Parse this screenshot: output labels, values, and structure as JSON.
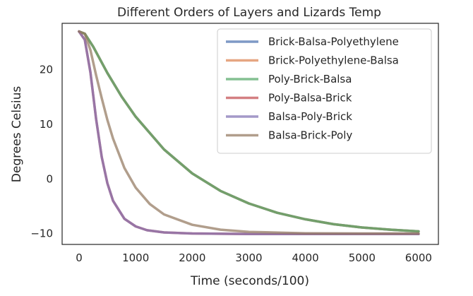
{
  "chart_data": {
    "type": "line",
    "title": "Different Orders of Layers and Lizards Temp",
    "xlabel": "Time (seconds/100)",
    "ylabel": "Degrees Celsius",
    "xlim": [
      -300,
      6350
    ],
    "ylim": [
      -12,
      28.5
    ],
    "xticks": [
      0,
      1000,
      2000,
      3000,
      4000,
      5000,
      6000
    ],
    "yticks": [
      -10,
      0,
      10,
      20
    ],
    "grid": false,
    "legend": "top-right",
    "series": [
      {
        "name": "Brick-Balsa-Polyethylene",
        "color": "#4c72b0",
        "x": [
          0,
          100,
          250,
          500,
          750,
          1000,
          1500,
          2000,
          2500,
          3000,
          3500,
          4000,
          4500,
          5000,
          5500,
          6000
        ],
        "y": [
          27,
          26.6,
          24.2,
          19.4,
          15.1,
          11.4,
          5.4,
          1.0,
          -2.2,
          -4.5,
          -6.2,
          -7.4,
          -8.3,
          -8.9,
          -9.3,
          -9.6
        ]
      },
      {
        "name": "Brick-Polyethylene-Balsa",
        "color": "#dd8452",
        "x": [
          0,
          100,
          250,
          500,
          750,
          1000,
          1500,
          2000,
          2500,
          3000,
          3500,
          4000,
          4500,
          5000,
          5500,
          6000
        ],
        "y": [
          27,
          26.6,
          24.2,
          19.4,
          15.1,
          11.4,
          5.4,
          1.0,
          -2.2,
          -4.5,
          -6.2,
          -7.4,
          -8.3,
          -8.9,
          -9.3,
          -9.6
        ]
      },
      {
        "name": "Poly-Brick-Balsa",
        "color": "#55a868",
        "x": [
          0,
          100,
          250,
          500,
          750,
          1000,
          1500,
          2000,
          2500,
          3000,
          3500,
          4000,
          4500,
          5000,
          5500,
          6000
        ],
        "y": [
          27,
          26.6,
          24.2,
          19.4,
          15.1,
          11.4,
          5.4,
          1.0,
          -2.2,
          -4.5,
          -6.2,
          -7.4,
          -8.3,
          -8.9,
          -9.3,
          -9.6
        ]
      },
      {
        "name": "Poly-Balsa-Brick",
        "color": "#c44e52",
        "x": [
          0,
          100,
          200,
          300,
          400,
          500,
          600,
          800,
          1000,
          1200,
          1500,
          2000,
          3000,
          4000,
          5000,
          6000
        ],
        "y": [
          27,
          25.5,
          19.5,
          11.0,
          4.0,
          -0.8,
          -4.0,
          -7.3,
          -8.7,
          -9.4,
          -9.8,
          -10.0,
          -10.1,
          -10.1,
          -10.1,
          -10.1
        ]
      },
      {
        "name": "Balsa-Poly-Brick",
        "color": "#8172b3",
        "x": [
          0,
          100,
          200,
          300,
          400,
          500,
          600,
          800,
          1000,
          1200,
          1500,
          2000,
          3000,
          4000,
          5000,
          6000
        ],
        "y": [
          27,
          25.5,
          19.5,
          11.0,
          4.0,
          -0.8,
          -4.0,
          -7.3,
          -8.7,
          -9.4,
          -9.8,
          -10.0,
          -10.1,
          -10.1,
          -10.1,
          -10.1
        ]
      },
      {
        "name": "Balsa-Brick-Poly",
        "color": "#937860",
        "x": [
          0,
          100,
          200,
          300,
          400,
          500,
          600,
          800,
          1000,
          1250,
          1500,
          2000,
          2500,
          3000,
          4000,
          5000,
          6000
        ],
        "y": [
          27,
          26.6,
          23.6,
          19.0,
          14.8,
          10.8,
          7.4,
          2.0,
          -1.6,
          -4.6,
          -6.5,
          -8.4,
          -9.3,
          -9.7,
          -9.95,
          -10.0,
          -10.0
        ]
      }
    ]
  }
}
